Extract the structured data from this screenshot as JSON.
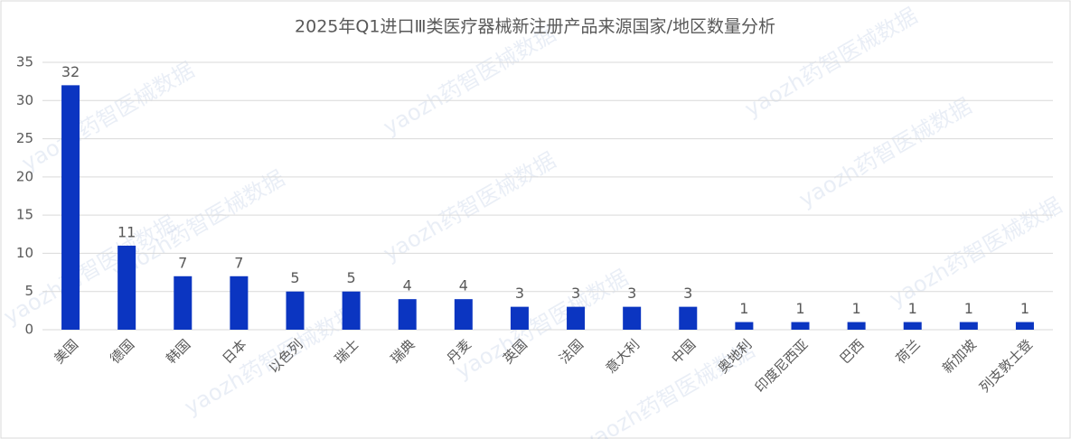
{
  "chart_data": {
    "type": "bar",
    "title": "2025年Q1进口Ⅲ类医疗器械新注册产品来源国家/地区数量分析",
    "watermark": "yaozh药智医械数据",
    "categories": [
      "美国",
      "德国",
      "韩国",
      "日本",
      "以色列",
      "瑞士",
      "瑞典",
      "丹麦",
      "英国",
      "法国",
      "意大利",
      "中国",
      "奥地利",
      "印度尼西亚",
      "巴西",
      "荷兰",
      "新加坡",
      "列支敦士登"
    ],
    "values": [
      32,
      11,
      7,
      7,
      5,
      5,
      4,
      4,
      3,
      3,
      3,
      3,
      1,
      1,
      1,
      1,
      1,
      1
    ],
    "color": "#0b35c1",
    "ylim": [
      0,
      35
    ],
    "yticks": [
      0,
      5,
      10,
      15,
      20,
      25,
      30,
      35
    ],
    "grid": true,
    "data_labels": true
  }
}
